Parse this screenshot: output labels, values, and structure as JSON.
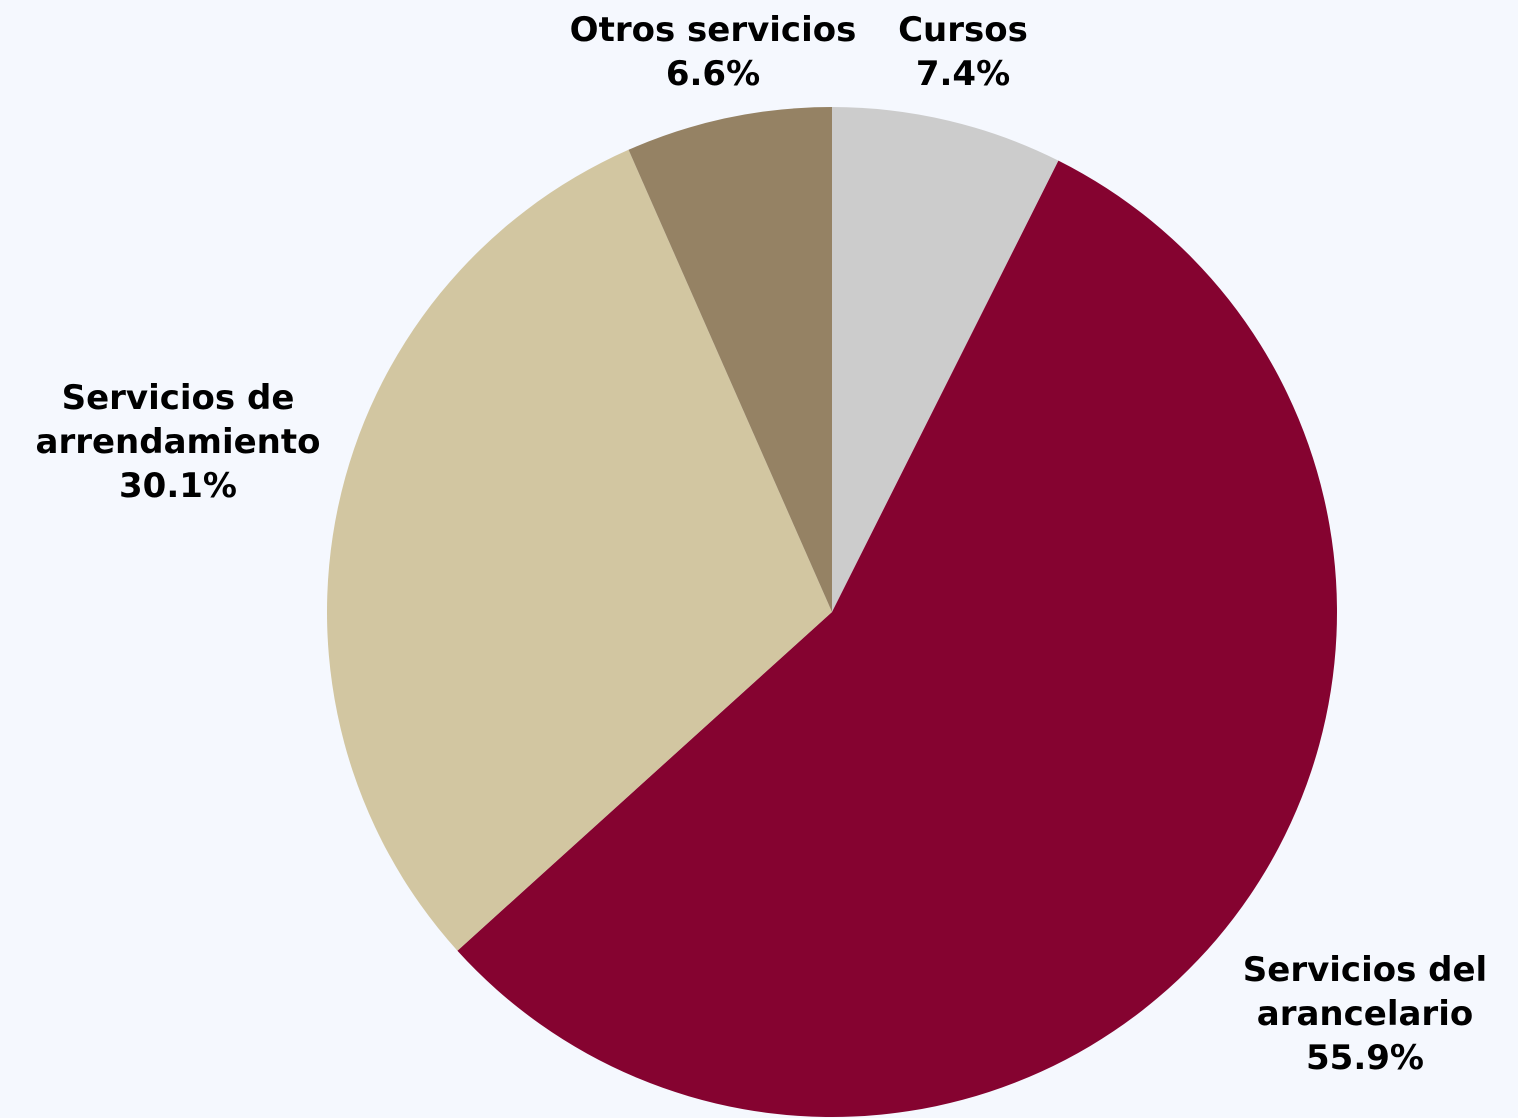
{
  "chart_data": {
    "type": "pie",
    "categories": [
      "Cursos",
      "Servicios del arancelario",
      "Servicios de arrendamiento",
      "Otros servicios"
    ],
    "values": [
      7.4,
      55.9,
      30.1,
      6.6
    ],
    "value_labels": [
      "7.4%",
      "55.9%",
      "30.1%",
      "6.6%"
    ],
    "colors": [
      "#cccccc",
      "#850330",
      "#d2c6a1",
      "#958264"
    ]
  }
}
